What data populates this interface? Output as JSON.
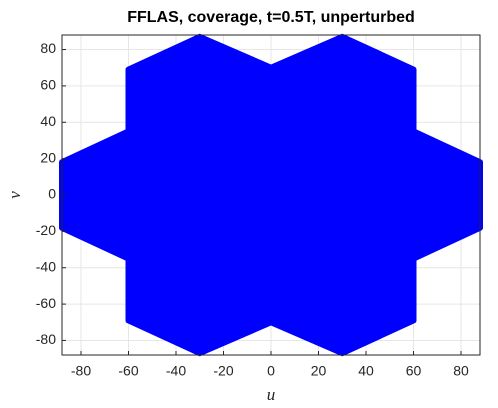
{
  "chart_data": {
    "type": "polygon",
    "title": "FFLAS, coverage, t=0.5T, unperturbed",
    "x_label": "u",
    "y_label": "v",
    "color": "#0000ff",
    "grid": true,
    "x": [
      -88,
      -60,
      -60,
      -30,
      0,
      30,
      60,
      60,
      88,
      88,
      60,
      60,
      30,
      0,
      -30,
      -60,
      -60,
      -88
    ],
    "y": [
      18,
      35,
      69,
      87,
      70,
      87,
      69,
      35,
      18,
      -18,
      -35,
      -69,
      -87,
      -70,
      -87,
      -69,
      -35,
      -18
    ],
    "xlim": [
      -88,
      88
    ],
    "ylim": [
      -88,
      88
    ],
    "xticks": [
      -80,
      -60,
      -40,
      -20,
      0,
      20,
      40,
      60,
      80
    ],
    "yticks": [
      -80,
      -60,
      -40,
      -20,
      0,
      20,
      40,
      60,
      80
    ]
  }
}
